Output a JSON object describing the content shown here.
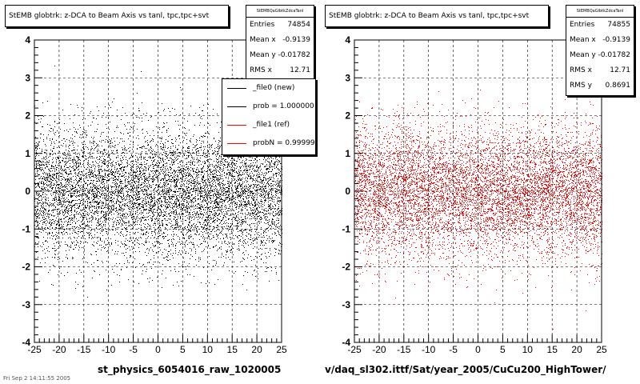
{
  "chart_data": [
    {
      "type": "scatter",
      "title": "StEMB globtrk: z-DCA to Beam Axis vs tanl, tpc,tpc+svt",
      "stats_name": "StEMBQaGlbtkZdcaTanl",
      "stats": [
        {
          "label": "Entries",
          "value": "74854"
        },
        {
          "label": "Mean x",
          "value": "-0.9139"
        },
        {
          "label": "Mean y",
          "value": "-0.01782"
        },
        {
          "label": "RMS x",
          "value": "12.71"
        }
      ],
      "xlim": [
        -25,
        25
      ],
      "ylim": [
        -4,
        4
      ],
      "xticks": [
        "-25",
        "-20",
        "-15",
        "-10",
        "-5",
        "0",
        "5",
        "10",
        "15",
        "20",
        "25"
      ],
      "yticks": [
        "-4",
        "-3",
        "-2",
        "-1",
        "0",
        "1",
        "2",
        "3",
        "4"
      ],
      "grid": true,
      "point_color": "#000000",
      "series": [
        {
          "name": "_file0 (new)",
          "distribution": {
            "x_range": [
              -25,
              25
            ],
            "y_mean": -0.02,
            "y_sigma": 0.85,
            "entries": 74854
          }
        }
      ],
      "legend": {
        "placement": "top-right",
        "entries": [
          {
            "label": "_file0 (new)",
            "color": "#000000"
          },
          {
            "label": "prob = 1.000000",
            "color": "#000000"
          },
          {
            "label": "_file1 (ref)",
            "color": "#ff0000"
          },
          {
            "label": "probN = 0.999991",
            "color": "#ff0000"
          }
        ]
      },
      "xlabel": "st_physics_6054016_raw_1020005"
    },
    {
      "type": "scatter",
      "title": "StEMB globtrk: z-DCA to Beam Axis vs tanl, tpc,tpc+svt",
      "stats_name": "StEMBQaGlbtkZdcaTanl",
      "stats": [
        {
          "label": "Entries",
          "value": "74855"
        },
        {
          "label": "Mean x",
          "value": "-0.9139"
        },
        {
          "label": "Mean y",
          "value": "-0.01782"
        },
        {
          "label": "RMS x",
          "value": "12.71"
        },
        {
          "label": "RMS y",
          "value": "0.8691"
        }
      ],
      "xlim": [
        -25,
        25
      ],
      "ylim": [
        -4,
        4
      ],
      "xticks": [
        "-25",
        "-20",
        "-15",
        "-10",
        "-5",
        "0",
        "5",
        "10",
        "15",
        "20",
        "25"
      ],
      "yticks": [
        "-4",
        "-3",
        "-2",
        "-1",
        "0",
        "1",
        "2",
        "3",
        "4"
      ],
      "grid": true,
      "point_color": "#ff0000",
      "series": [
        {
          "name": "_file1 (ref)",
          "distribution": {
            "x_range": [
              -25,
              25
            ],
            "y_mean": -0.02,
            "y_sigma": 0.87,
            "entries": 74855
          }
        }
      ],
      "xlabel": "v/daq_sl302.ittf/Sat/year_2005/CuCu200_HighTower/"
    }
  ],
  "footer_fragment": "Fri Sep 2 14:11:55 2005"
}
